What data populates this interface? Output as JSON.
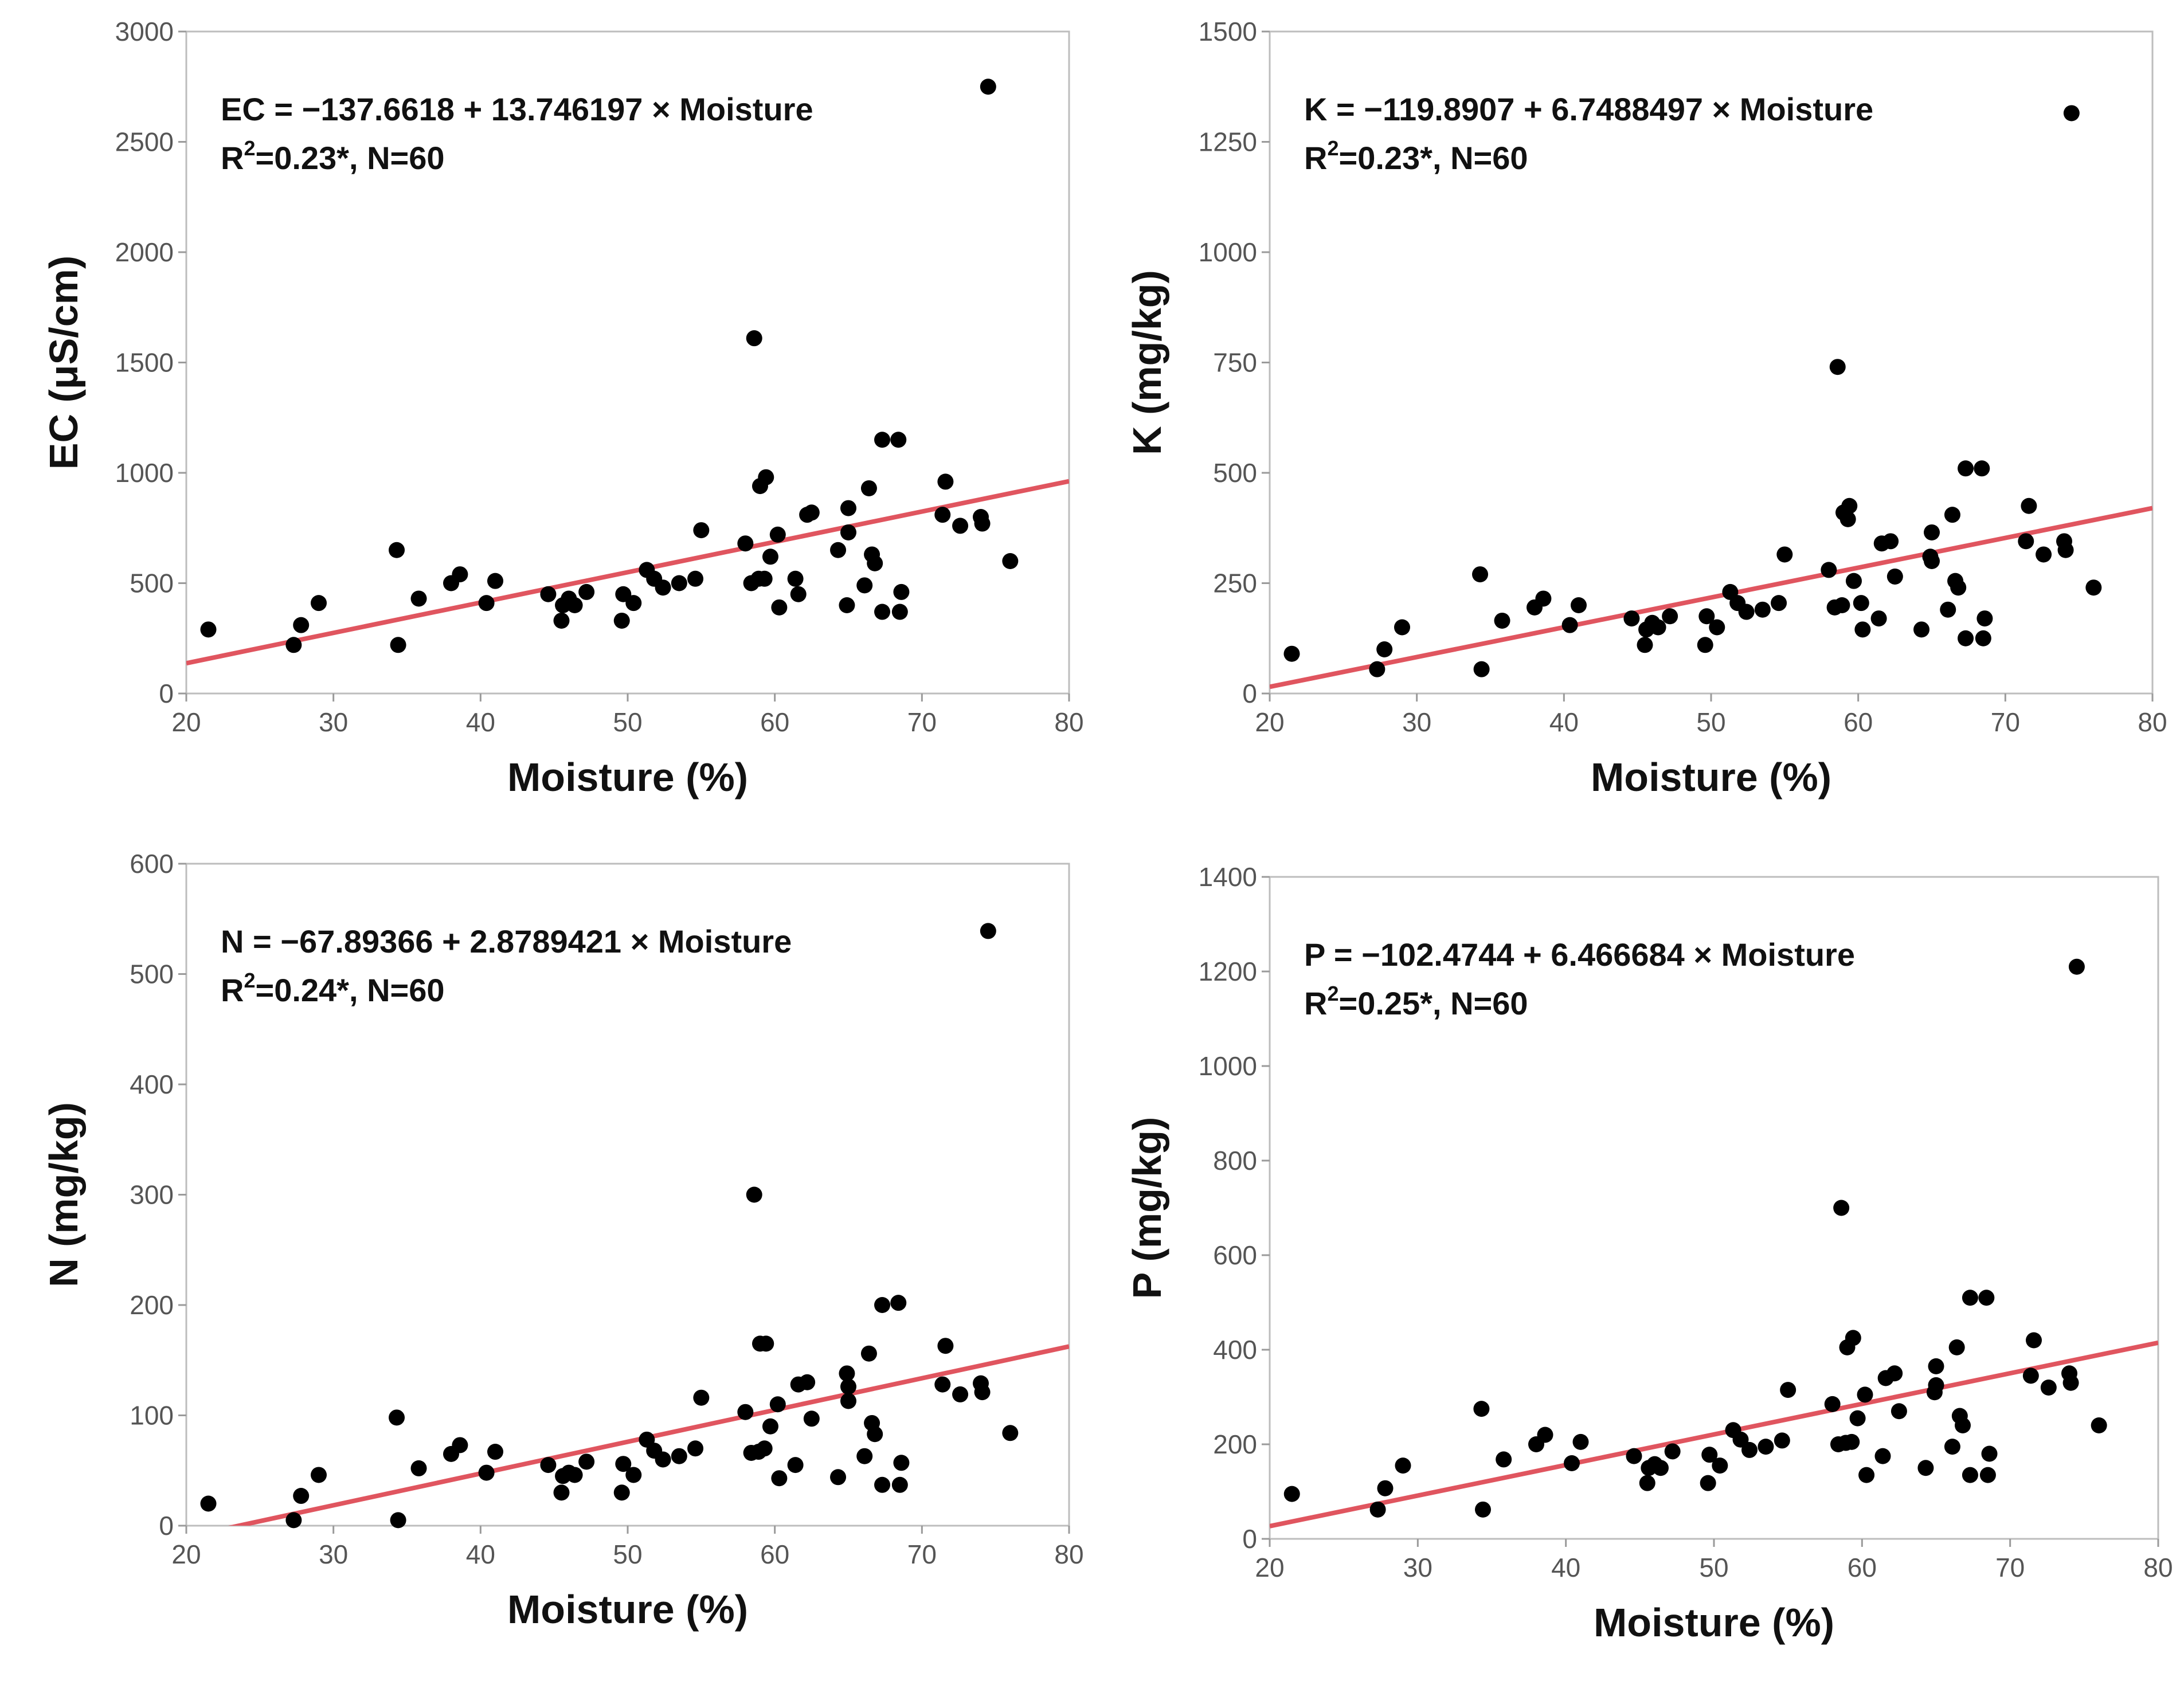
{
  "colors": {
    "point": "#000000",
    "fit_line": "#e0555f",
    "frame": "#bdbdbd",
    "tick_text": "#555555"
  },
  "chart_data": [
    {
      "id": "ec",
      "type": "scatter",
      "title": "",
      "xlabel": "Moisture (%)",
      "ylabel": "EC (μS/cm)",
      "xlim": [
        20,
        80
      ],
      "ylim": [
        0,
        3000
      ],
      "xticks": [
        "20",
        "30",
        "40",
        "50",
        "60",
        "70",
        "80"
      ],
      "yticks": [
        "0",
        "500",
        "1000",
        "1500",
        "2000",
        "2500",
        "3000"
      ],
      "fit": {
        "intercept": -137.6618,
        "slope": 13.746197
      },
      "equation": "EC = −137.6618 + 13.746197 × Moisture",
      "stats": {
        "r2_prefix": "R",
        "r2_sup": "2",
        "r2_rest": "=0.23*, N=60"
      },
      "x": [
        21.5,
        27.3,
        27.8,
        29.0,
        34.3,
        34.4,
        35.8,
        38.0,
        38.6,
        40.4,
        41.0,
        44.6,
        45.5,
        45.6,
        46.0,
        46.4,
        47.2,
        49.6,
        49.7,
        50.4,
        51.3,
        51.8,
        52.4,
        53.5,
        54.6,
        55.0,
        58.0,
        58.4,
        58.6,
        58.9,
        59.0,
        59.4,
        59.7,
        60.2,
        60.3,
        61.4,
        61.6,
        62.2,
        62.5,
        64.3,
        64.9,
        65.0,
        65.0,
        66.1,
        66.4,
        66.6,
        66.8,
        67.3,
        67.3,
        68.4,
        68.5,
        68.6,
        71.6,
        71.4,
        72.6,
        74.0,
        74.1,
        74.5,
        76.0,
        59.3
      ],
      "y": [
        290,
        220,
        310,
        410,
        650,
        220,
        430,
        500,
        540,
        410,
        510,
        450,
        330,
        400,
        430,
        400,
        460,
        330,
        450,
        410,
        560,
        520,
        480,
        500,
        520,
        740,
        680,
        500,
        1610,
        520,
        940,
        980,
        620,
        720,
        390,
        520,
        450,
        810,
        820,
        650,
        400,
        730,
        840,
        490,
        930,
        630,
        590,
        1150,
        370,
        1150,
        370,
        460,
        960,
        810,
        760,
        800,
        770,
        2750,
        600,
        520
      ]
    },
    {
      "id": "k",
      "type": "scatter",
      "title": "",
      "xlabel": "Moisture (%)",
      "ylabel": "K (mg/kg)",
      "xlim": [
        20,
        80
      ],
      "ylim": [
        0,
        1500
      ],
      "xticks": [
        "20",
        "30",
        "40",
        "50",
        "60",
        "70",
        "80"
      ],
      "yticks": [
        "0",
        "250",
        "500",
        "750",
        "1000",
        "1250",
        "1500"
      ],
      "fit": {
        "intercept": -119.8907,
        "slope": 6.7488497
      },
      "equation": "K = −119.8907 + 6.7488497 × Moisture",
      "stats": {
        "r2_prefix": "R",
        "r2_sup": "2",
        "r2_rest": "=0.23*, N=60"
      },
      "x": [
        21.5,
        27.3,
        27.8,
        29.0,
        34.3,
        34.4,
        35.8,
        38.0,
        38.6,
        40.4,
        41.0,
        44.6,
        45.5,
        45.6,
        46.0,
        46.4,
        47.2,
        49.6,
        49.7,
        50.4,
        51.3,
        51.8,
        52.4,
        53.5,
        54.6,
        55.0,
        58.0,
        58.4,
        58.6,
        58.9,
        59.0,
        59.4,
        59.7,
        60.2,
        60.3,
        61.4,
        61.6,
        62.2,
        62.5,
        64.3,
        64.9,
        65.0,
        65.0,
        66.1,
        66.4,
        66.6,
        66.8,
        67.3,
        67.3,
        68.4,
        68.5,
        68.6,
        71.6,
        71.4,
        72.6,
        74.0,
        74.1,
        74.5,
        76.0,
        59.3
      ],
      "y": [
        90,
        55,
        100,
        150,
        270,
        55,
        165,
        195,
        215,
        155,
        200,
        170,
        110,
        145,
        160,
        150,
        175,
        110,
        175,
        150,
        230,
        205,
        185,
        190,
        205,
        315,
        280,
        195,
        740,
        200,
        410,
        425,
        255,
        205,
        145,
        170,
        340,
        345,
        265,
        145,
        310,
        300,
        365,
        190,
        405,
        255,
        240,
        510,
        125,
        510,
        125,
        170,
        425,
        345,
        315,
        345,
        325,
        1315,
        240,
        395
      ]
    },
    {
      "id": "n",
      "type": "scatter",
      "title": "",
      "xlabel": "Moisture (%)",
      "ylabel": "N (mg/kg)",
      "xlim": [
        20,
        80
      ],
      "ylim": [
        0,
        600
      ],
      "xticks": [
        "20",
        "30",
        "40",
        "50",
        "60",
        "70",
        "80"
      ],
      "yticks": [
        "0",
        "100",
        "200",
        "300",
        "400",
        "500",
        "600"
      ],
      "fit": {
        "intercept": -67.89366,
        "slope": 2.8789421
      },
      "equation": "N = −67.89366 + 2.8789421 × Moisture",
      "stats": {
        "r2_prefix": "R",
        "r2_sup": "2",
        "r2_rest": "=0.24*, N=60"
      },
      "x": [
        21.5,
        27.3,
        27.8,
        29.0,
        34.3,
        34.4,
        35.8,
        38.0,
        38.6,
        40.4,
        41.0,
        44.6,
        45.5,
        45.6,
        46.0,
        46.4,
        47.2,
        49.6,
        49.7,
        50.4,
        51.3,
        51.8,
        52.4,
        53.5,
        54.6,
        55.0,
        58.0,
        58.4,
        58.6,
        58.9,
        59.0,
        59.4,
        59.7,
        60.2,
        60.3,
        61.4,
        61.6,
        62.2,
        62.5,
        64.3,
        64.9,
        65.0,
        65.0,
        66.1,
        66.4,
        66.6,
        66.8,
        67.3,
        67.3,
        68.4,
        68.5,
        68.6,
        71.6,
        71.4,
        72.6,
        74.0,
        74.1,
        74.5,
        76.0,
        59.3
      ],
      "y": [
        20,
        5,
        27,
        46,
        98,
        5,
        52,
        65,
        73,
        48,
        67,
        55,
        30,
        45,
        48,
        46,
        58,
        30,
        56,
        46,
        78,
        68,
        60,
        63,
        70,
        116,
        103,
        66,
        300,
        67,
        165,
        165,
        90,
        110,
        43,
        55,
        128,
        130,
        97,
        44,
        138,
        113,
        126,
        63,
        156,
        93,
        83,
        200,
        37,
        202,
        37,
        57,
        163,
        128,
        119,
        129,
        121,
        539,
        84,
        70
      ]
    },
    {
      "id": "p",
      "type": "scatter",
      "title": "",
      "xlabel": "Moisture (%)",
      "ylabel": "P (mg/kg)",
      "xlim": [
        20,
        80
      ],
      "ylim": [
        0,
        1400
      ],
      "xticks": [
        "20",
        "30",
        "40",
        "50",
        "60",
        "70",
        "80"
      ],
      "yticks": [
        "0",
        "200",
        "400",
        "600",
        "800",
        "1000",
        "1200",
        "1400"
      ],
      "fit": {
        "intercept": -102.4744,
        "slope": 6.466684
      },
      "equation": "P = −102.4744 + 6.466684 × Moisture",
      "stats": {
        "r2_prefix": "R",
        "r2_sup": "2",
        "r2_rest": "=0.25*, N=60"
      },
      "x": [
        21.5,
        27.3,
        27.8,
        29.0,
        34.3,
        34.4,
        35.8,
        38.0,
        38.6,
        40.4,
        41.0,
        44.6,
        45.5,
        45.6,
        46.0,
        46.4,
        47.2,
        49.6,
        49.7,
        50.4,
        51.3,
        51.8,
        52.4,
        53.5,
        54.6,
        55.0,
        58.0,
        58.4,
        58.6,
        58.9,
        59.0,
        59.4,
        59.7,
        60.2,
        60.3,
        61.4,
        61.6,
        62.2,
        62.5,
        64.3,
        64.9,
        65.0,
        65.0,
        66.1,
        66.4,
        66.6,
        66.8,
        67.3,
        67.3,
        68.4,
        68.5,
        68.6,
        71.6,
        71.4,
        72.6,
        74.0,
        74.1,
        74.5,
        76.0,
        59.3
      ],
      "y": [
        95,
        62,
        107,
        155,
        275,
        62,
        168,
        200,
        220,
        160,
        205,
        175,
        118,
        150,
        158,
        150,
        185,
        118,
        178,
        155,
        230,
        210,
        188,
        195,
        208,
        315,
        285,
        200,
        700,
        203,
        405,
        425,
        255,
        305,
        135,
        175,
        340,
        350,
        270,
        150,
        310,
        325,
        365,
        195,
        405,
        260,
        240,
        510,
        135,
        510,
        135,
        180,
        420,
        345,
        320,
        350,
        330,
        1210,
        240,
        205
      ]
    }
  ]
}
